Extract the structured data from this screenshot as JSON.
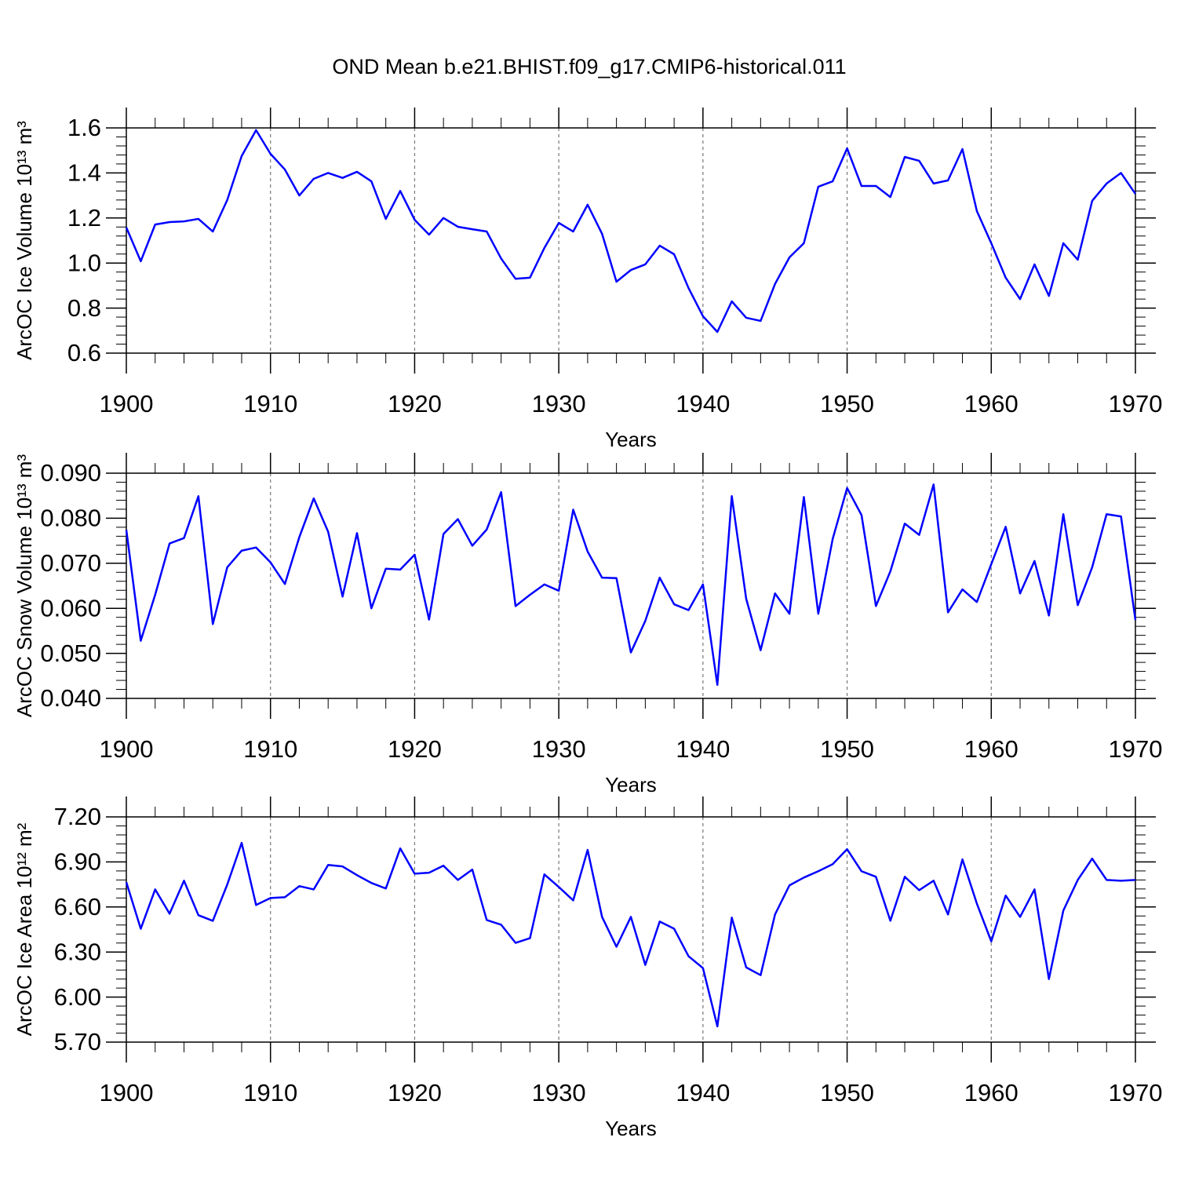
{
  "title": "OND Mean b.e21.BHIST.f09_g17.CMIP6-historical.011",
  "chart_data": [
    {
      "type": "line",
      "xlabel": "Years",
      "ylabel": "ArcOC Ice Volume 10¹³ m³",
      "color": "#0000ff",
      "grid": true,
      "xlim": [
        1900,
        1970
      ],
      "ylim": [
        0.6,
        1.6
      ],
      "xticks": [
        1900,
        1910,
        1920,
        1930,
        1940,
        1950,
        1960,
        1970
      ],
      "yticks": [
        0.6,
        0.8,
        {
          "value": 1.0,
          "label": "1.0"
        },
        1.2,
        1.4,
        1.6
      ],
      "x": [
        1900,
        1901,
        1902,
        1903,
        1904,
        1905,
        1906,
        1907,
        1908,
        1909,
        1910,
        1911,
        1912,
        1913,
        1914,
        1915,
        1916,
        1917,
        1918,
        1919,
        1920,
        1921,
        1922,
        1923,
        1924,
        1925,
        1926,
        1927,
        1928,
        1929,
        1930,
        1931,
        1932,
        1933,
        1934,
        1935,
        1936,
        1937,
        1938,
        1939,
        1940,
        1941,
        1942,
        1943,
        1944,
        1945,
        1946,
        1947,
        1948,
        1949,
        1950,
        1951,
        1952,
        1953,
        1954,
        1955,
        1956,
        1957,
        1958,
        1959,
        1960,
        1961,
        1962,
        1963,
        1964,
        1965,
        1966,
        1967,
        1968,
        1969,
        1970
      ],
      "values": [
        1.158,
        1.008,
        1.171,
        1.182,
        1.185,
        1.196,
        1.14,
        1.28,
        1.475,
        1.59,
        1.485,
        1.415,
        1.3,
        1.374,
        1.4,
        1.378,
        1.405,
        1.363,
        1.196,
        1.32,
        1.192,
        1.126,
        1.2,
        1.161,
        1.15,
        1.14,
        1.02,
        0.93,
        0.935,
        1.067,
        1.178,
        1.14,
        1.259,
        1.13,
        0.917,
        0.969,
        0.994,
        1.077,
        1.039,
        0.889,
        0.764,
        0.694,
        0.83,
        0.757,
        0.743,
        0.907,
        1.025,
        1.088,
        1.339,
        1.363,
        1.509,
        1.342,
        1.342,
        1.293,
        1.471,
        1.454,
        1.353,
        1.367,
        1.506,
        1.231,
        1.088,
        0.935,
        0.84,
        0.994,
        0.854,
        1.088,
        1.015,
        1.276,
        1.353,
        1.4,
        1.307
      ]
    },
    {
      "type": "line",
      "xlabel": "Years",
      "ylabel": "ArcOC Snow Volume 10¹³ m³",
      "color": "#0000ff",
      "grid": true,
      "xlim": [
        1900,
        1970
      ],
      "ylim": [
        0.04,
        0.09
      ],
      "xticks": [
        1900,
        1910,
        1920,
        1930,
        1940,
        1950,
        1960,
        1970
      ],
      "yticks": [
        {
          "value": 0.04,
          "label": "0.040"
        },
        {
          "value": 0.05,
          "label": "0.050"
        },
        {
          "value": 0.06,
          "label": "0.060"
        },
        {
          "value": 0.07,
          "label": "0.070"
        },
        {
          "value": 0.08,
          "label": "0.080"
        },
        {
          "value": 0.09,
          "label": "0.090"
        }
      ],
      "x": [
        1900,
        1901,
        1902,
        1903,
        1904,
        1905,
        1906,
        1907,
        1908,
        1909,
        1910,
        1911,
        1912,
        1913,
        1914,
        1915,
        1916,
        1917,
        1918,
        1919,
        1920,
        1921,
        1922,
        1923,
        1924,
        1925,
        1926,
        1927,
        1928,
        1929,
        1930,
        1931,
        1932,
        1933,
        1934,
        1935,
        1936,
        1937,
        1938,
        1939,
        1940,
        1941,
        1942,
        1943,
        1944,
        1945,
        1946,
        1947,
        1948,
        1949,
        1950,
        1951,
        1952,
        1953,
        1954,
        1955,
        1956,
        1957,
        1958,
        1959,
        1960,
        1961,
        1962,
        1963,
        1964,
        1965,
        1966,
        1967,
        1968,
        1969,
        1970
      ],
      "values": [
        0.0774,
        0.0528,
        0.063,
        0.0744,
        0.0756,
        0.0849,
        0.0565,
        0.0691,
        0.0728,
        0.0735,
        0.0702,
        0.0654,
        0.0758,
        0.0844,
        0.077,
        0.0626,
        0.0767,
        0.06,
        0.0688,
        0.0686,
        0.0719,
        0.0575,
        0.0765,
        0.0798,
        0.0739,
        0.0775,
        0.0858,
        0.0605,
        0.063,
        0.0653,
        0.0639,
        0.0819,
        0.0726,
        0.0668,
        0.0667,
        0.0502,
        0.0572,
        0.0668,
        0.0609,
        0.0596,
        0.0653,
        0.043,
        0.0849,
        0.0621,
        0.0507,
        0.0633,
        0.0588,
        0.0847,
        0.0588,
        0.0754,
        0.0867,
        0.0807,
        0.0605,
        0.0682,
        0.0788,
        0.0763,
        0.0875,
        0.0591,
        0.0642,
        0.0614,
        0.0698,
        0.0781,
        0.0633,
        0.0705,
        0.0584,
        0.0809,
        0.0607,
        0.0691,
        0.0809,
        0.0804,
        0.0574
      ]
    },
    {
      "type": "line",
      "xlabel": "Years",
      "ylabel": "ArcOC Ice Area 10¹² m²",
      "color": "#0000ff",
      "grid": true,
      "xlim": [
        1900,
        1970
      ],
      "ylim": [
        5.7,
        7.2
      ],
      "xticks": [
        1900,
        1910,
        1920,
        1930,
        1940,
        1950,
        1960,
        1970
      ],
      "yticks": [
        {
          "value": 5.7,
          "label": "5.70"
        },
        {
          "value": 6.0,
          "label": "6.00"
        },
        {
          "value": 6.3,
          "label": "6.30"
        },
        {
          "value": 6.6,
          "label": "6.60"
        },
        {
          "value": 6.9,
          "label": "6.90"
        },
        {
          "value": 7.2,
          "label": "7.20"
        }
      ],
      "x": [
        1900,
        1901,
        1902,
        1903,
        1904,
        1905,
        1906,
        1907,
        1908,
        1909,
        1910,
        1911,
        1912,
        1913,
        1914,
        1915,
        1916,
        1917,
        1918,
        1919,
        1920,
        1921,
        1922,
        1923,
        1924,
        1925,
        1926,
        1927,
        1928,
        1929,
        1930,
        1931,
        1932,
        1933,
        1934,
        1935,
        1936,
        1937,
        1938,
        1939,
        1940,
        1941,
        1942,
        1943,
        1944,
        1945,
        1946,
        1947,
        1948,
        1949,
        1950,
        1951,
        1952,
        1953,
        1954,
        1955,
        1956,
        1957,
        1958,
        1959,
        1960,
        1961,
        1962,
        1963,
        1964,
        1965,
        1966,
        1967,
        1968,
        1969,
        1970
      ],
      "values": [
        6.765,
        6.455,
        6.717,
        6.555,
        6.775,
        6.545,
        6.508,
        6.749,
        7.027,
        6.613,
        6.66,
        6.665,
        6.739,
        6.717,
        6.88,
        6.87,
        6.812,
        6.76,
        6.723,
        6.99,
        6.822,
        6.828,
        6.875,
        6.78,
        6.849,
        6.513,
        6.482,
        6.361,
        6.392,
        6.817,
        6.733,
        6.644,
        6.98,
        6.534,
        6.335,
        6.534,
        6.214,
        6.503,
        6.455,
        6.272,
        6.193,
        5.805,
        6.529,
        6.198,
        6.146,
        6.55,
        6.744,
        6.796,
        6.838,
        6.885,
        6.985,
        6.838,
        6.801,
        6.508,
        6.801,
        6.712,
        6.775,
        6.55,
        6.917,
        6.623,
        6.371,
        6.676,
        6.534,
        6.717,
        6.12,
        6.576,
        6.78,
        6.922,
        6.78,
        6.775,
        6.78
      ]
    }
  ]
}
